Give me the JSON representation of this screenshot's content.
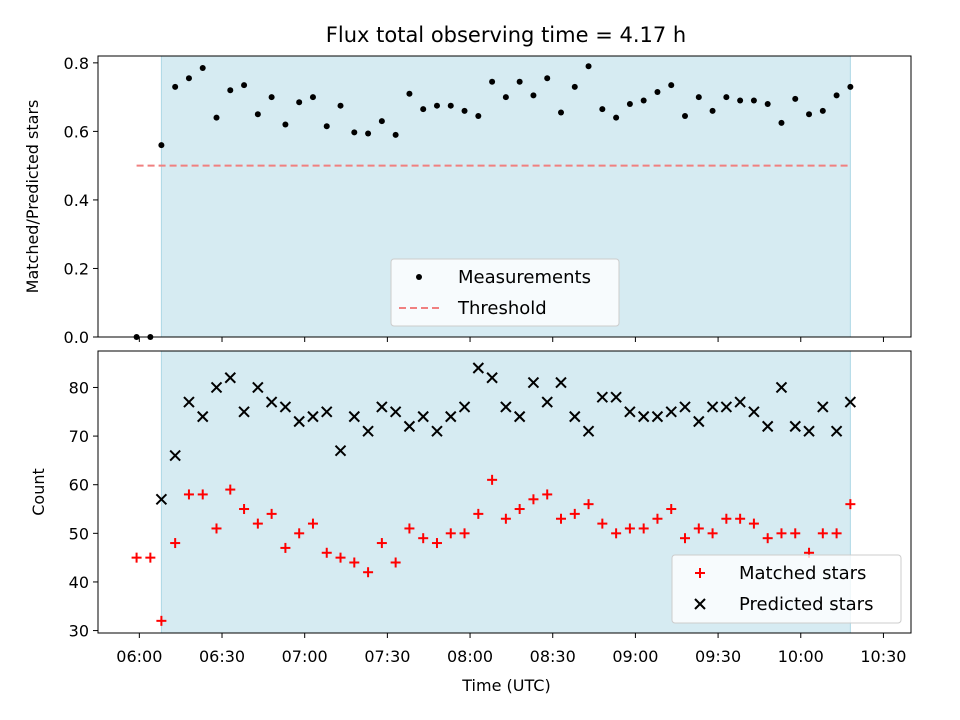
{
  "title": "Flux total observing time = 4.17 h",
  "colors": {
    "shade": "#add8e6",
    "measurements": "#000000",
    "threshold": "#f08080",
    "matched": "#ff0000",
    "predicted": "#000000"
  },
  "chart_data": [
    {
      "type": "scatter",
      "ylabel": "Matched/Predicted stars",
      "ylim": [
        0,
        0.82
      ],
      "yticks": [
        0.0,
        0.2,
        0.4,
        0.6,
        0.8
      ],
      "ytick_labels": [
        "0.0",
        "0.2",
        "0.4",
        "0.6",
        "0.8"
      ],
      "xlim_minutes_after_0600": [
        -15,
        280
      ],
      "observing_window": [
        "06:08",
        "10:18"
      ],
      "threshold": {
        "y": 0.5,
        "x_range": [
          "05:59",
          "10:18"
        ]
      },
      "legend": {
        "placement": "lower center",
        "entries": [
          "Measurements",
          "Threshold"
        ]
      },
      "series": [
        {
          "name": "Measurements",
          "x": [
            "05:59",
            "06:04",
            "06:08",
            "06:13",
            "06:18",
            "06:23",
            "06:28",
            "06:33",
            "06:38",
            "06:43",
            "06:48",
            "06:53",
            "06:58",
            "07:03",
            "07:08",
            "07:13",
            "07:18",
            "07:23",
            "07:28",
            "07:33",
            "07:38",
            "07:43",
            "07:48",
            "07:53",
            "07:58",
            "08:03",
            "08:08",
            "08:13",
            "08:18",
            "08:23",
            "08:28",
            "08:33",
            "08:38",
            "08:43",
            "08:48",
            "08:53",
            "08:58",
            "09:03",
            "09:08",
            "09:13",
            "09:18",
            "09:23",
            "09:28",
            "09:33",
            "09:38",
            "09:43",
            "09:48",
            "09:53",
            "09:58",
            "10:03",
            "10:08",
            "10:13",
            "10:18"
          ],
          "y": [
            0.0,
            0.0,
            0.56,
            0.73,
            0.755,
            0.785,
            0.64,
            0.72,
            0.735,
            0.65,
            0.7,
            0.62,
            0.685,
            0.7,
            0.615,
            0.675,
            0.597,
            0.594,
            0.63,
            0.59,
            0.71,
            0.665,
            0.675,
            0.675,
            0.66,
            0.645,
            0.745,
            0.7,
            0.745,
            0.705,
            0.755,
            0.655,
            0.73,
            0.79,
            0.665,
            0.64,
            0.68,
            0.69,
            0.715,
            0.735,
            0.645,
            0.7,
            0.66,
            0.7,
            0.69,
            0.69,
            0.68,
            0.625,
            0.695,
            0.65,
            0.66,
            0.705,
            0.73
          ]
        }
      ]
    },
    {
      "type": "scatter",
      "xlabel": "Time (UTC)",
      "ylabel": "Count",
      "ylim": [
        29.5,
        87.5
      ],
      "yticks": [
        30,
        40,
        50,
        60,
        70,
        80
      ],
      "ytick_labels": [
        "30",
        "40",
        "50",
        "60",
        "70",
        "80"
      ],
      "xticks": [
        "06:00",
        "06:30",
        "07:00",
        "07:30",
        "08:00",
        "08:30",
        "09:00",
        "09:30",
        "10:00",
        "10:30"
      ],
      "xlim_minutes_after_0600": [
        -15,
        280
      ],
      "observing_window": [
        "06:08",
        "10:18"
      ],
      "legend": {
        "placement": "lower right",
        "entries": [
          "Matched stars",
          "Predicted stars"
        ]
      },
      "series": [
        {
          "name": "Matched stars",
          "marker": "+",
          "x": [
            "05:59",
            "06:04",
            "06:08",
            "06:13",
            "06:18",
            "06:23",
            "06:28",
            "06:33",
            "06:38",
            "06:43",
            "06:48",
            "06:53",
            "06:58",
            "07:03",
            "07:08",
            "07:13",
            "07:18",
            "07:23",
            "07:28",
            "07:33",
            "07:38",
            "07:43",
            "07:48",
            "07:53",
            "07:58",
            "08:03",
            "08:08",
            "08:13",
            "08:18",
            "08:23",
            "08:28",
            "08:33",
            "08:38",
            "08:43",
            "08:48",
            "08:53",
            "08:58",
            "09:03",
            "09:08",
            "09:13",
            "09:18",
            "09:23",
            "09:28",
            "09:33",
            "09:38",
            "09:43",
            "09:48",
            "09:53",
            "09:58",
            "10:03",
            "10:08",
            "10:13",
            "10:18"
          ],
          "y": [
            45,
            45,
            32,
            48,
            58,
            58,
            51,
            59,
            55,
            52,
            54,
            47,
            50,
            52,
            46,
            45,
            44,
            42,
            48,
            44,
            51,
            49,
            48,
            50,
            50,
            54,
            61,
            53,
            55,
            57,
            58,
            53,
            54,
            56,
            52,
            50,
            51,
            51,
            53,
            55,
            49,
            51,
            50,
            53,
            53,
            52,
            49,
            50,
            50,
            46,
            50,
            50,
            56
          ]
        },
        {
          "name": "Predicted stars",
          "marker": "x",
          "x": [
            "06:08",
            "06:13",
            "06:18",
            "06:23",
            "06:28",
            "06:33",
            "06:38",
            "06:43",
            "06:48",
            "06:53",
            "06:58",
            "07:03",
            "07:08",
            "07:13",
            "07:18",
            "07:23",
            "07:28",
            "07:33",
            "07:38",
            "07:43",
            "07:48",
            "07:53",
            "07:58",
            "08:03",
            "08:08",
            "08:13",
            "08:18",
            "08:23",
            "08:28",
            "08:33",
            "08:38",
            "08:43",
            "08:48",
            "08:53",
            "08:58",
            "09:03",
            "09:08",
            "09:13",
            "09:18",
            "09:23",
            "09:28",
            "09:33",
            "09:38",
            "09:43",
            "09:48",
            "09:53",
            "09:58",
            "10:03",
            "10:08",
            "10:13",
            "10:18"
          ],
          "y": [
            57,
            66,
            77,
            74,
            80,
            82,
            75,
            80,
            77,
            76,
            73,
            74,
            75,
            67,
            74,
            71,
            76,
            75,
            72,
            74,
            71,
            74,
            76,
            84,
            82,
            76,
            74,
            81,
            77,
            81,
            74,
            71,
            78,
            78,
            75,
            74,
            74,
            75,
            76,
            73,
            76,
            76,
            77,
            75,
            72,
            80,
            72,
            71,
            76,
            71,
            77
          ]
        }
      ]
    }
  ]
}
